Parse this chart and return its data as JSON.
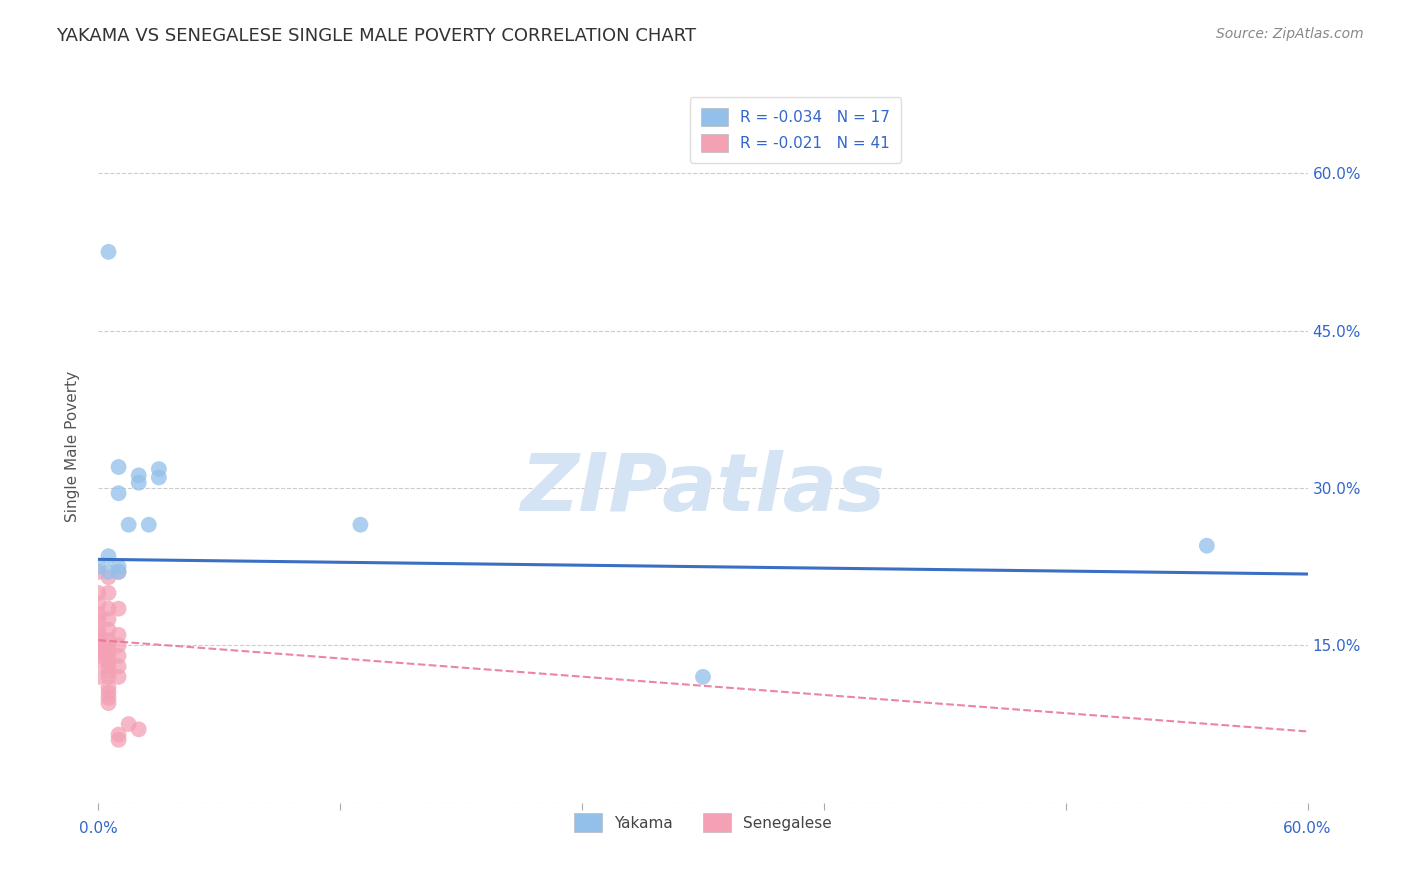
{
  "title": "YAKAMA VS SENEGALESE SINGLE MALE POVERTY CORRELATION CHART",
  "source": "Source: ZipAtlas.com",
  "ylabel": "Single Male Poverty",
  "xlim": [
    0.0,
    0.6
  ],
  "ylim": [
    0.0,
    0.68
  ],
  "yticks": [
    0.0,
    0.15,
    0.3,
    0.45,
    0.6
  ],
  "xticks": [
    0.0,
    0.12,
    0.24,
    0.36,
    0.48,
    0.6
  ],
  "xtick_labels": [
    "0.0%",
    "",
    "",
    "",
    "",
    "60.0%"
  ],
  "yakama_R": -0.034,
  "yakama_N": 17,
  "senegalese_R": -0.021,
  "senegalese_N": 41,
  "yakama_color": "#92C0EA",
  "senegalese_color": "#F4A0B5",
  "trend_yakama_color": "#3A6FC4",
  "trend_senegalese_color": "#E87090",
  "watermark_color": "#D5E4F5",
  "background_color": "#FFFFFF",
  "yakama_x": [
    0.005,
    0.01,
    0.01,
    0.015,
    0.02,
    0.02,
    0.025,
    0.03,
    0.03,
    0.005,
    0.005,
    0.01,
    0.01,
    0.13,
    0.3,
    0.55,
    0.0
  ],
  "yakama_y": [
    0.525,
    0.32,
    0.295,
    0.265,
    0.312,
    0.305,
    0.265,
    0.318,
    0.31,
    0.235,
    0.22,
    0.225,
    0.22,
    0.265,
    0.12,
    0.245,
    0.225
  ],
  "senegalese_x": [
    0.0,
    0.0,
    0.0,
    0.0,
    0.0,
    0.0,
    0.0,
    0.0,
    0.0,
    0.0,
    0.0,
    0.0,
    0.0,
    0.005,
    0.005,
    0.005,
    0.005,
    0.005,
    0.005,
    0.005,
    0.005,
    0.005,
    0.005,
    0.005,
    0.005,
    0.005,
    0.005,
    0.005,
    0.005,
    0.005,
    0.01,
    0.01,
    0.01,
    0.01,
    0.01,
    0.01,
    0.01,
    0.01,
    0.01,
    0.015,
    0.02
  ],
  "senegalese_y": [
    0.22,
    0.2,
    0.19,
    0.18,
    0.175,
    0.165,
    0.16,
    0.155,
    0.15,
    0.145,
    0.14,
    0.135,
    0.12,
    0.215,
    0.2,
    0.185,
    0.175,
    0.165,
    0.155,
    0.15,
    0.145,
    0.14,
    0.135,
    0.13,
    0.125,
    0.12,
    0.11,
    0.105,
    0.1,
    0.095,
    0.22,
    0.185,
    0.16,
    0.15,
    0.14,
    0.13,
    0.12,
    0.065,
    0.06,
    0.075,
    0.07
  ],
  "trend_yakama_x0": 0.0,
  "trend_yakama_x1": 0.6,
  "trend_yakama_y0": 0.232,
  "trend_yakama_y1": 0.218,
  "trend_seng_x0": 0.0,
  "trend_seng_x1": 0.6,
  "trend_seng_y0": 0.155,
  "trend_seng_y1": 0.068
}
